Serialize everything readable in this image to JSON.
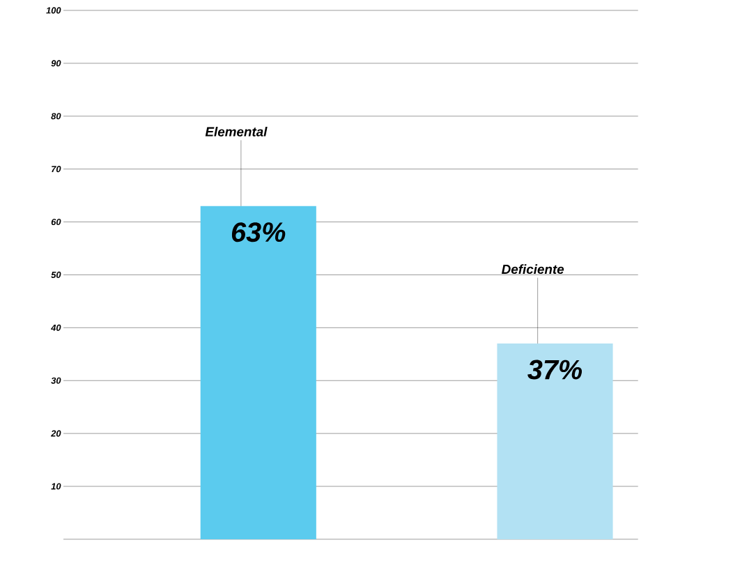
{
  "chart_data": {
    "type": "bar",
    "categories": [
      "Elemental",
      "Deficiente"
    ],
    "values": [
      63,
      37
    ],
    "colors": [
      "#5bcbee",
      "#b2e1f3"
    ],
    "value_labels": [
      "63%",
      "37%"
    ],
    "ylim": [
      0,
      100
    ],
    "yticks": [
      10,
      20,
      30,
      40,
      50,
      60,
      70,
      80,
      90,
      100
    ],
    "grid": "y"
  }
}
